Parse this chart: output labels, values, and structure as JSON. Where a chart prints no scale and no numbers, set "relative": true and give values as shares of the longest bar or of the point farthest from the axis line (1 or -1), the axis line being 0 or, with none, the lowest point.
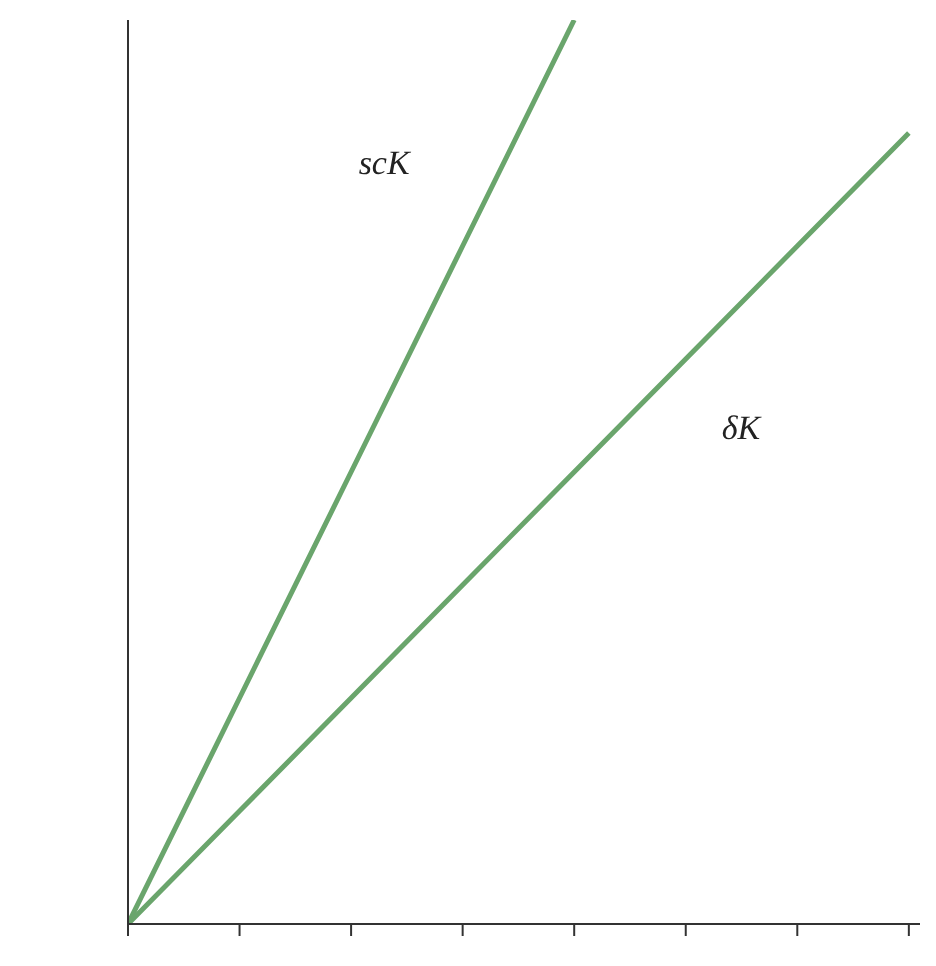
{
  "chart_data": {
    "type": "line",
    "relative": true,
    "marker": "none",
    "categories": [
      null,
      null,
      null,
      null,
      null,
      null,
      null,
      null
    ],
    "series": [
      {
        "name": "scK",
        "color": "#6aa56c",
        "values": [
          0,
          0.25,
          0.5,
          0.75,
          1,
          null,
          null,
          null
        ]
      },
      {
        "name": "δK",
        "color": "#6aa56c",
        "values": [
          0,
          0.125,
          0.25,
          0.375,
          0.5,
          0.625,
          0.75,
          0.875
        ]
      }
    ]
  }
}
